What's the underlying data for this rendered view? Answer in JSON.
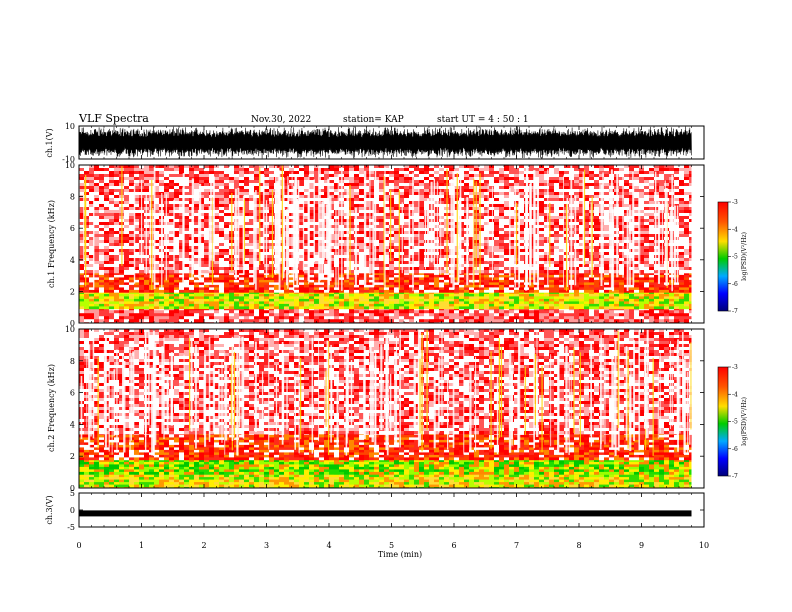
{
  "header": {
    "title": "VLF Spectra",
    "date": "Nov.30, 2022",
    "station": "station= KAP",
    "start": "start  UT =   4 : 50 : 1"
  },
  "colorbar": {
    "label": "log(PSD)(V²/Hz)",
    "ticks": [
      "-3",
      "-4",
      "-5",
      "-6",
      "-7"
    ],
    "colors": [
      "#ff0000",
      "#ff8800",
      "#ffee00",
      "#00cc00",
      "#00a0ff",
      "#0000ff",
      "#00008a"
    ]
  },
  "chart_data": [
    {
      "type": "line",
      "name": "ch1-waveform",
      "ylabel": "ch.1(V)",
      "ylim": [
        -10,
        10
      ],
      "ytick_labels": [
        "10",
        "-10"
      ],
      "description_of_signal": "dense broadband noise spanning nearly full range"
    },
    {
      "type": "heatmap",
      "name": "ch1-spectrogram",
      "ylabel": "ch.1 Frequency (kHz)",
      "ylim": [
        0,
        10
      ],
      "ytick_labels": [
        "0",
        "2",
        "4",
        "6",
        "8",
        "10"
      ],
      "bands": [
        {
          "from_khz": 0,
          "to_khz": 1,
          "level": "red-white lines"
        },
        {
          "from_khz": 1,
          "to_khz": 2,
          "level": "yellow-green"
        },
        {
          "from_khz": 2,
          "to_khz": 3.2,
          "level": "red"
        },
        {
          "from_khz": 3.2,
          "to_khz": 10,
          "level": "red-white"
        }
      ]
    },
    {
      "type": "heatmap",
      "name": "ch2-spectrogram",
      "ylabel": "ch.2 Frequency (kHz)",
      "ylim": [
        0,
        10
      ],
      "ytick_labels": [
        "0",
        "2",
        "4",
        "6",
        "8",
        "10"
      ],
      "bands": [
        {
          "from_khz": 0,
          "to_khz": 1,
          "level": "yellow-green"
        },
        {
          "from_khz": 1,
          "to_khz": 1.8,
          "level": "green-yellow"
        },
        {
          "from_khz": 1.8,
          "to_khz": 3.5,
          "level": "red"
        },
        {
          "from_khz": 3.5,
          "to_khz": 10,
          "level": "red-white"
        }
      ]
    },
    {
      "type": "line",
      "name": "ch3-waveform",
      "ylabel": "ch.3(V)",
      "ylim": [
        -5,
        5
      ],
      "ytick_labels": [
        "5",
        "0",
        "-5"
      ],
      "level": -1
    }
  ],
  "xaxis": {
    "label": "Time  (min)",
    "range": [
      0,
      10
    ],
    "data_end": 9.8,
    "tick_labels": [
      "0",
      "1",
      "2",
      "3",
      "4",
      "5",
      "6",
      "7",
      "8",
      "9",
      "10"
    ]
  }
}
